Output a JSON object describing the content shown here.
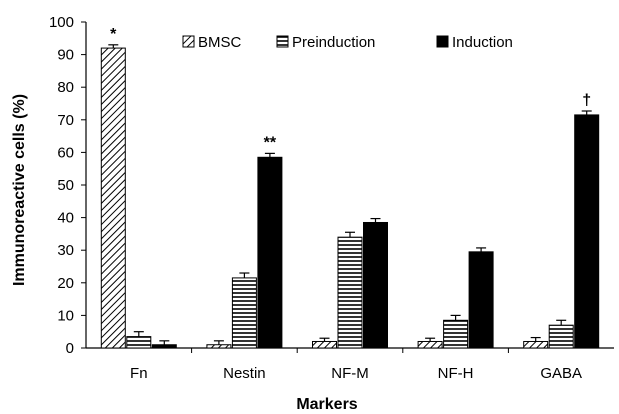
{
  "chart_data": {
    "type": "bar",
    "title": "",
    "xlabel": "Markers",
    "ylabel": "Immunoreactive cells (%)",
    "ylim": [
      0,
      100
    ],
    "yticks": [
      0,
      10,
      20,
      30,
      40,
      50,
      60,
      70,
      80,
      90,
      100
    ],
    "grid": false,
    "legend_position": "top",
    "categories": [
      "Fn",
      "Nestin",
      "NF-M",
      "NF-H",
      "GABA"
    ],
    "series": [
      {
        "name": "BMSC",
        "pattern": "diagonal-hatch",
        "color": "#000000",
        "values": [
          92,
          1,
          2,
          2,
          2
        ],
        "errors": [
          1,
          1.2,
          1,
          1,
          1.2
        ]
      },
      {
        "name": "Preinduction",
        "pattern": "horizontal-stripes",
        "color": "#000000",
        "values": [
          3.5,
          21.5,
          34,
          8.5,
          7
        ],
        "errors": [
          1.5,
          1.5,
          1.5,
          1.5,
          1.5
        ]
      },
      {
        "name": "Induction",
        "pattern": "solid",
        "color": "#000000",
        "values": [
          1,
          58.5,
          38.5,
          29.5,
          71.5
        ],
        "errors": [
          1.2,
          1.2,
          1.2,
          1.2,
          1.2
        ]
      }
    ],
    "annotations": [
      {
        "text": "*",
        "category": "Fn",
        "series": "BMSC"
      },
      {
        "text": "**",
        "category": "Nestin",
        "series": "Induction"
      },
      {
        "text": "†",
        "category": "GABA",
        "series": "Induction"
      }
    ]
  }
}
